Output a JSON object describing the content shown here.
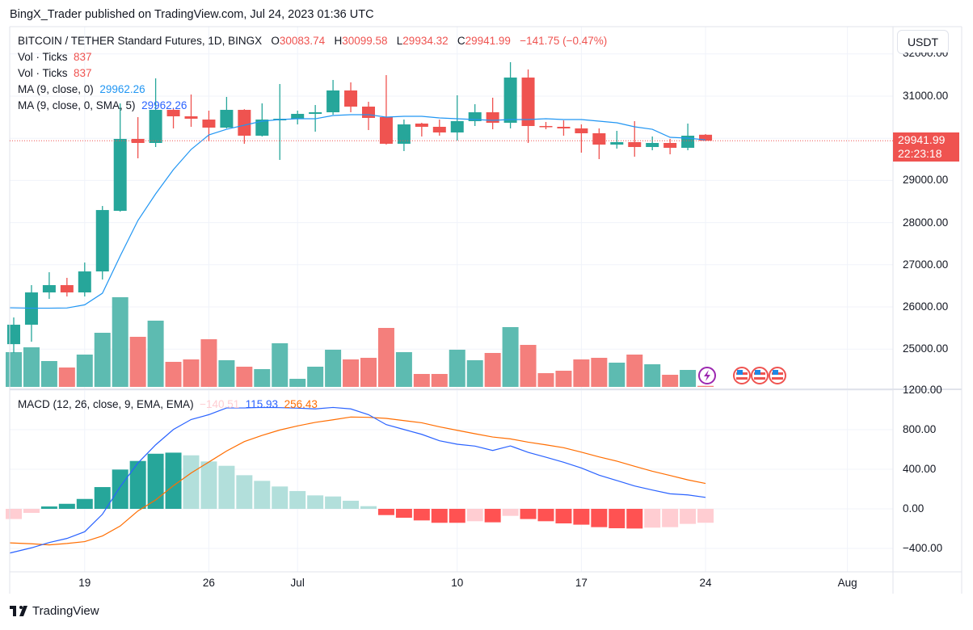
{
  "publish_line": "BingX_Trader published on TradingView.com, Jul 24, 2023 01:36 UTC",
  "legend": {
    "symbol": "BITCOIN / TETHER Standard Futures, 1D, BINGX",
    "o_label": "O",
    "o": "30083.74",
    "h_label": "H",
    "h": "30099.58",
    "l_label": "L",
    "l": "29934.32",
    "c_label": "C",
    "c": "29941.99",
    "change": "−141.75 (−0.47%)",
    "vol1_label": "Vol · Ticks",
    "vol1": "837",
    "vol2_label": "Vol · Ticks",
    "vol2": "837",
    "ma1_label": "MA (9, close, 0)",
    "ma1": "29962.26",
    "ma2_label": "MA (9, close, 0, SMA, 5)",
    "ma2": "29962.26",
    "macd_label": "MACD (12, 26, close, 9, EMA, EMA)",
    "macd_hist": "−140.51",
    "macd": "115.93",
    "macd_signal": "256.43"
  },
  "currency_button": "USDT",
  "last_price": {
    "price": "29941.99",
    "countdown": "22:23:18"
  },
  "price_axis": [
    "32000.00",
    "31000.00",
    "30000.00",
    "29000.00",
    "28000.00",
    "27000.00",
    "26000.00",
    "25000.00"
  ],
  "macd_axis": [
    "1200.00",
    "800.00",
    "400.00",
    "0.00",
    "−400.00"
  ],
  "time_axis": [
    {
      "label": "19",
      "date": "2023-06-19"
    },
    {
      "label": "26",
      "date": "2023-06-26"
    },
    {
      "label": "Jul",
      "date": "2023-07-01"
    },
    {
      "label": "10",
      "date": "2023-07-10"
    },
    {
      "label": "17",
      "date": "2023-07-17"
    },
    {
      "label": "24",
      "date": "2023-07-24"
    },
    {
      "label": "Aug",
      "date": "2023-08-01"
    }
  ],
  "event_icons": [
    "lightning-icon",
    "us-flag-icon",
    "us-flag-icon",
    "us-flag-icon"
  ],
  "footer_logo": "TradingView",
  "colors": {
    "up": "#26a69a",
    "down": "#ef5350",
    "ma": "#2196f3",
    "macd": "#2962ff",
    "signal": "#ff6d00",
    "hist_up_strong": "#26a69a",
    "hist_up_weak": "#b2dfdb",
    "hist_down_strong": "#ff5252",
    "hist_down_weak": "#ffcdd2"
  },
  "chart_data": {
    "type": "candlestick",
    "start_date": "2023-06-15",
    "interval": "1D",
    "ohlc": [
      [
        25117,
        25750,
        24907,
        25578
      ],
      [
        25578,
        26517,
        25175,
        26344
      ],
      [
        26344,
        26823,
        26191,
        26517
      ],
      [
        26517,
        26690,
        26248,
        26344
      ],
      [
        26344,
        27053,
        26248,
        26842
      ],
      [
        26842,
        28394,
        26650,
        28298
      ],
      [
        28279,
        30828,
        28260,
        29985
      ],
      [
        29985,
        30502,
        29525,
        29889
      ],
      [
        29889,
        31421,
        29793,
        30674
      ],
      [
        30674,
        30700,
        30234,
        30521
      ],
      [
        30521,
        31038,
        30272,
        30464
      ],
      [
        30444,
        30655,
        29927,
        30253
      ],
      [
        30253,
        30981,
        30234,
        30674
      ],
      [
        30674,
        30690,
        29870,
        30061
      ],
      [
        30061,
        30828,
        30042,
        30444
      ],
      [
        30425,
        31287,
        29487,
        30463
      ],
      [
        30464,
        30655,
        30329,
        30579
      ],
      [
        30579,
        30789,
        30157,
        30617
      ],
      [
        30617,
        31383,
        30559,
        31134
      ],
      [
        31134,
        31326,
        30617,
        30751
      ],
      [
        30751,
        30866,
        30195,
        30483
      ],
      [
        30502,
        31498,
        29851,
        29870
      ],
      [
        29870,
        30444,
        29697,
        30329
      ],
      [
        30349,
        30368,
        30042,
        30272
      ],
      [
        30272,
        30444,
        30061,
        30138
      ],
      [
        30138,
        31019,
        29946,
        30406
      ],
      [
        30406,
        30808,
        30291,
        30617
      ],
      [
        30617,
        30962,
        30214,
        30368
      ],
      [
        30368,
        31805,
        30234,
        31440
      ],
      [
        31440,
        31632,
        29889,
        30291
      ],
      [
        30291,
        30387,
        30214,
        30272
      ],
      [
        30272,
        30425,
        30061,
        30234
      ],
      [
        30234,
        30329,
        29659,
        30119
      ],
      [
        30119,
        30234,
        29506,
        29850
      ],
      [
        29850,
        30176,
        29755,
        29908
      ],
      [
        29908,
        30406,
        29563,
        29793
      ],
      [
        29793,
        30042,
        29716,
        29889
      ],
      [
        29889,
        29985,
        29620,
        29774
      ],
      [
        29774,
        30349,
        29716,
        30061
      ],
      [
        30083.74,
        30099.58,
        29934.32,
        29941.99
      ]
    ],
    "volume": [
      27950,
      31850,
      20800,
      15600,
      26000,
      43550,
      72150,
      40300,
      53300,
      20150,
      22100,
      38350,
      21450,
      16250,
      14300,
      35100,
      6500,
      16250,
      29900,
      22100,
      23400,
      47450,
      27950,
      10400,
      10400,
      29900,
      21450,
      27300,
      48100,
      33800,
      11050,
      13000,
      22100,
      23400,
      19500,
      26000,
      18200,
      9750,
      13650,
      837
    ],
    "ma9": [
      25980,
      25970,
      25970,
      25975,
      26050,
      26325,
      27206,
      28049,
      28682,
      29256,
      29735,
      30080,
      30214,
      30310,
      30406,
      30444,
      30463,
      30463,
      30540,
      30560,
      30560,
      30502,
      30521,
      30521,
      30483,
      30463,
      30444,
      30425,
      30444,
      30444,
      30464,
      30444,
      30444,
      30406,
      30368,
      30272,
      30214,
      30023,
      30004,
      29962.26
    ],
    "macd": [
      -447,
      -394,
      -340,
      -299,
      -231,
      -54,
      223,
      463,
      647,
      802,
      903,
      952,
      1020,
      1020,
      1025,
      1023,
      1018,
      1010,
      1025,
      1010,
      952,
      851,
      802,
      753,
      688,
      653,
      634,
      590,
      636,
      571,
      522,
      471,
      413,
      340,
      286,
      231,
      190,
      152,
      141,
      115.93
    ],
    "signal": [
      -344,
      -353,
      -364,
      -350,
      -331,
      -274,
      -174,
      -21,
      90,
      234,
      362,
      473,
      585,
      680,
      742,
      797,
      838,
      874,
      900,
      928,
      925,
      914,
      892,
      870,
      829,
      794,
      759,
      726,
      707,
      674,
      647,
      618,
      573,
      525,
      482,
      430,
      380,
      337,
      293,
      256.43
    ],
    "histogram": [
      -103,
      -41,
      24,
      51,
      100,
      220,
      397,
      484,
      557,
      568,
      541,
      479,
      435,
      340,
      283,
      226,
      180,
      136,
      125,
      82,
      27,
      -63,
      -90,
      -117,
      -141,
      -141,
      -125,
      -136,
      -71,
      -103,
      -125,
      -147,
      -160,
      -185,
      -196,
      -199,
      -190,
      -185,
      -152,
      -140.51
    ],
    "price_range": [
      24800,
      32100
    ],
    "macd_range": [
      -480,
      1200
    ],
    "grid": true
  }
}
